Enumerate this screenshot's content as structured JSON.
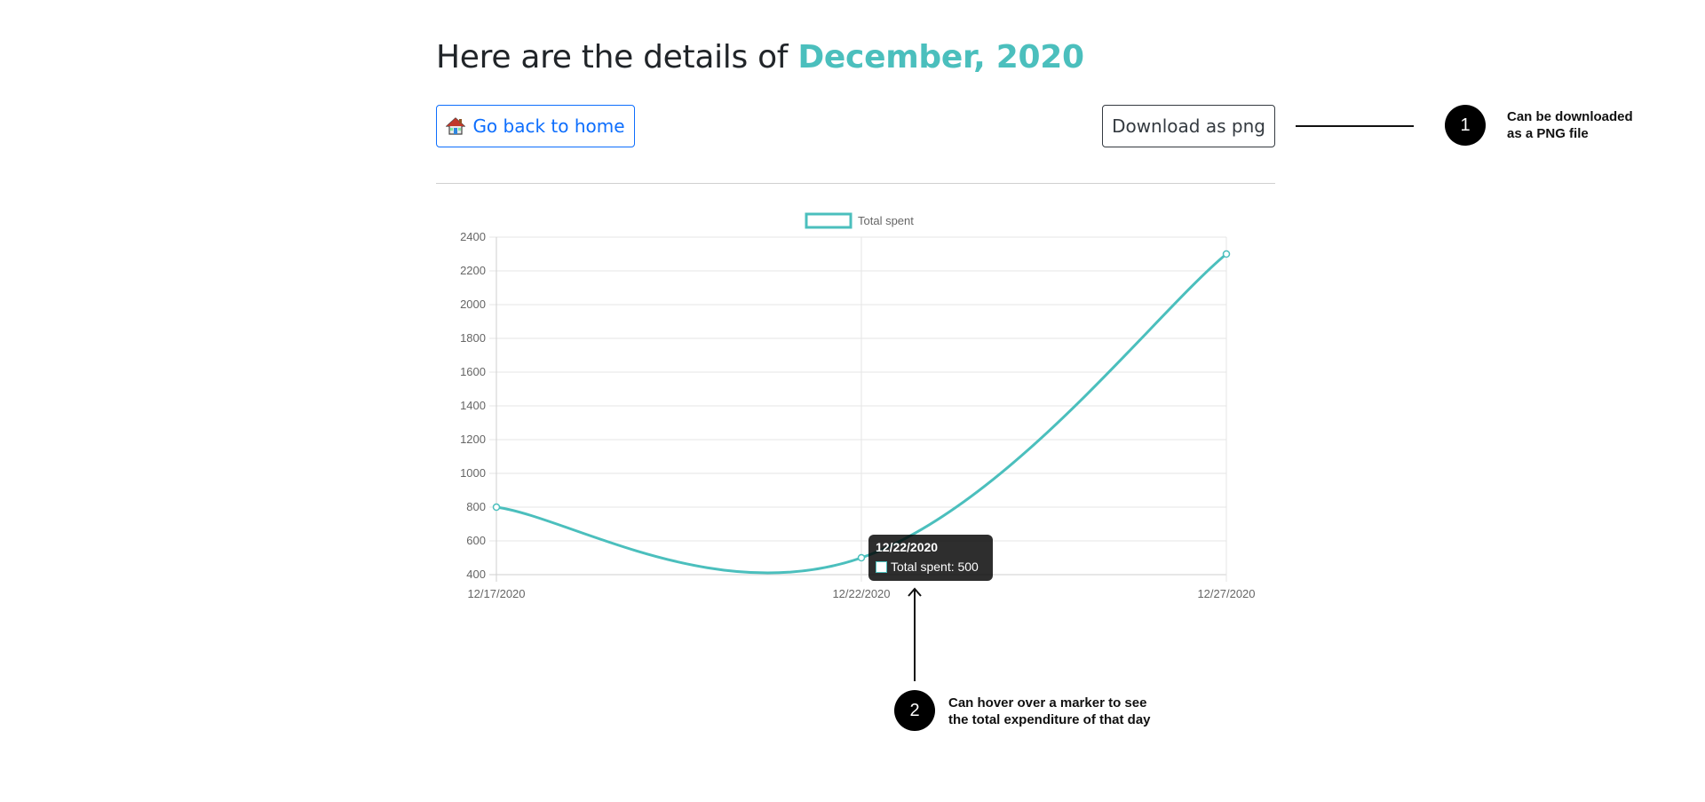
{
  "page": {
    "title_prefix": "Here are the details of",
    "title_highlight": "December, 2020"
  },
  "toolbar": {
    "home_label": "Go back to home",
    "home_icon": "house-icon",
    "download_label": "Download as png"
  },
  "callouts": [
    {
      "number": "1",
      "lines": [
        "Can be downloaded",
        "as a PNG file"
      ]
    },
    {
      "number": "2",
      "lines": [
        "Can hover over a marker to see",
        "the total expenditure of that day"
      ]
    }
  ],
  "tooltip": {
    "title": "12/22/2020",
    "label": "Total spent: 500"
  },
  "colors": {
    "accent": "#4bbfbd",
    "primary": "#0d6efd"
  },
  "chart_data": {
    "type": "line",
    "x": [
      "12/17/2020",
      "12/22/2020",
      "12/27/2020"
    ],
    "series": [
      {
        "name": "Total spent",
        "values": [
          800,
          500,
          2300
        ]
      }
    ],
    "yticks": [
      400,
      600,
      800,
      1000,
      1200,
      1400,
      1600,
      1800,
      2000,
      2200,
      2400
    ],
    "ylim": [
      400,
      2400
    ],
    "legend": "top-center",
    "grid": true
  }
}
